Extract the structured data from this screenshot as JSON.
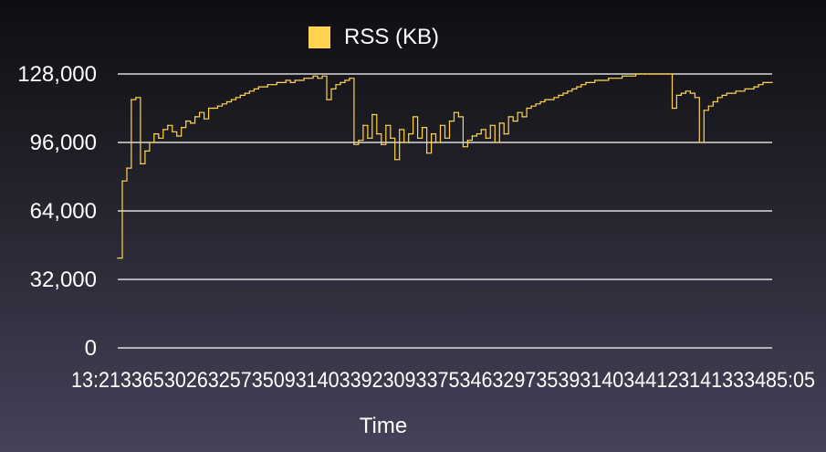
{
  "chart_data": {
    "type": "line",
    "xlabel": "Time",
    "ylabel": "",
    "ylim": [
      0,
      128000
    ],
    "y_ticks": [
      "0",
      "32,000",
      "64,000",
      "96,000",
      "128,000"
    ],
    "y_tick_values": [
      0,
      32000,
      64000,
      96000,
      128000
    ],
    "x_first_tick": "13:21",
    "x_last_tick": "13:45:05",
    "x_tick_overlap_text": "13:213365302632573509314033923093375346329735393140344123141333485:05",
    "grid": true,
    "legend_position": "top-center",
    "series": [
      {
        "name": "RSS (KB)",
        "color": "#ffd34f",
        "values": [
          42000,
          78000,
          84000,
          116000,
          117000,
          86000,
          92000,
          96000,
          100000,
          98000,
          102000,
          104000,
          101000,
          99000,
          103000,
          106000,
          105000,
          108000,
          110000,
          107000,
          112000,
          112000,
          113000,
          114000,
          115000,
          116000,
          117000,
          118000,
          119000,
          120000,
          121000,
          122000,
          122000,
          123000,
          123000,
          124000,
          124000,
          125000,
          124000,
          125000,
          125000,
          126000,
          126000,
          127000,
          126000,
          127000,
          116000,
          121000,
          123000,
          124000,
          125000,
          126000,
          95000,
          97000,
          104000,
          98000,
          109000,
          100000,
          95000,
          104000,
          98000,
          88000,
          102000,
          96000,
          100000,
          108000,
          98000,
          103000,
          91000,
          100000,
          96000,
          104000,
          98000,
          106000,
          110000,
          108000,
          94000,
          97000,
          99000,
          100000,
          102000,
          98000,
          104000,
          96000,
          105000,
          100000,
          108000,
          106000,
          110000,
          108000,
          112000,
          113000,
          114000,
          115000,
          116000,
          116000,
          117000,
          118000,
          119000,
          120000,
          121000,
          122000,
          123000,
          124000,
          124000,
          125000,
          125000,
          125000,
          126000,
          126000,
          126000,
          127000,
          127000,
          127000,
          128000,
          128000,
          128000,
          128000,
          128000,
          128000,
          128000,
          128000,
          112000,
          118000,
          119000,
          120000,
          119000,
          117000,
          96000,
          111000,
          113000,
          115000,
          117000,
          118000,
          119000,
          119000,
          120000,
          120000,
          121000,
          121000,
          122000,
          123000,
          124000,
          124000,
          124000
        ]
      }
    ]
  }
}
